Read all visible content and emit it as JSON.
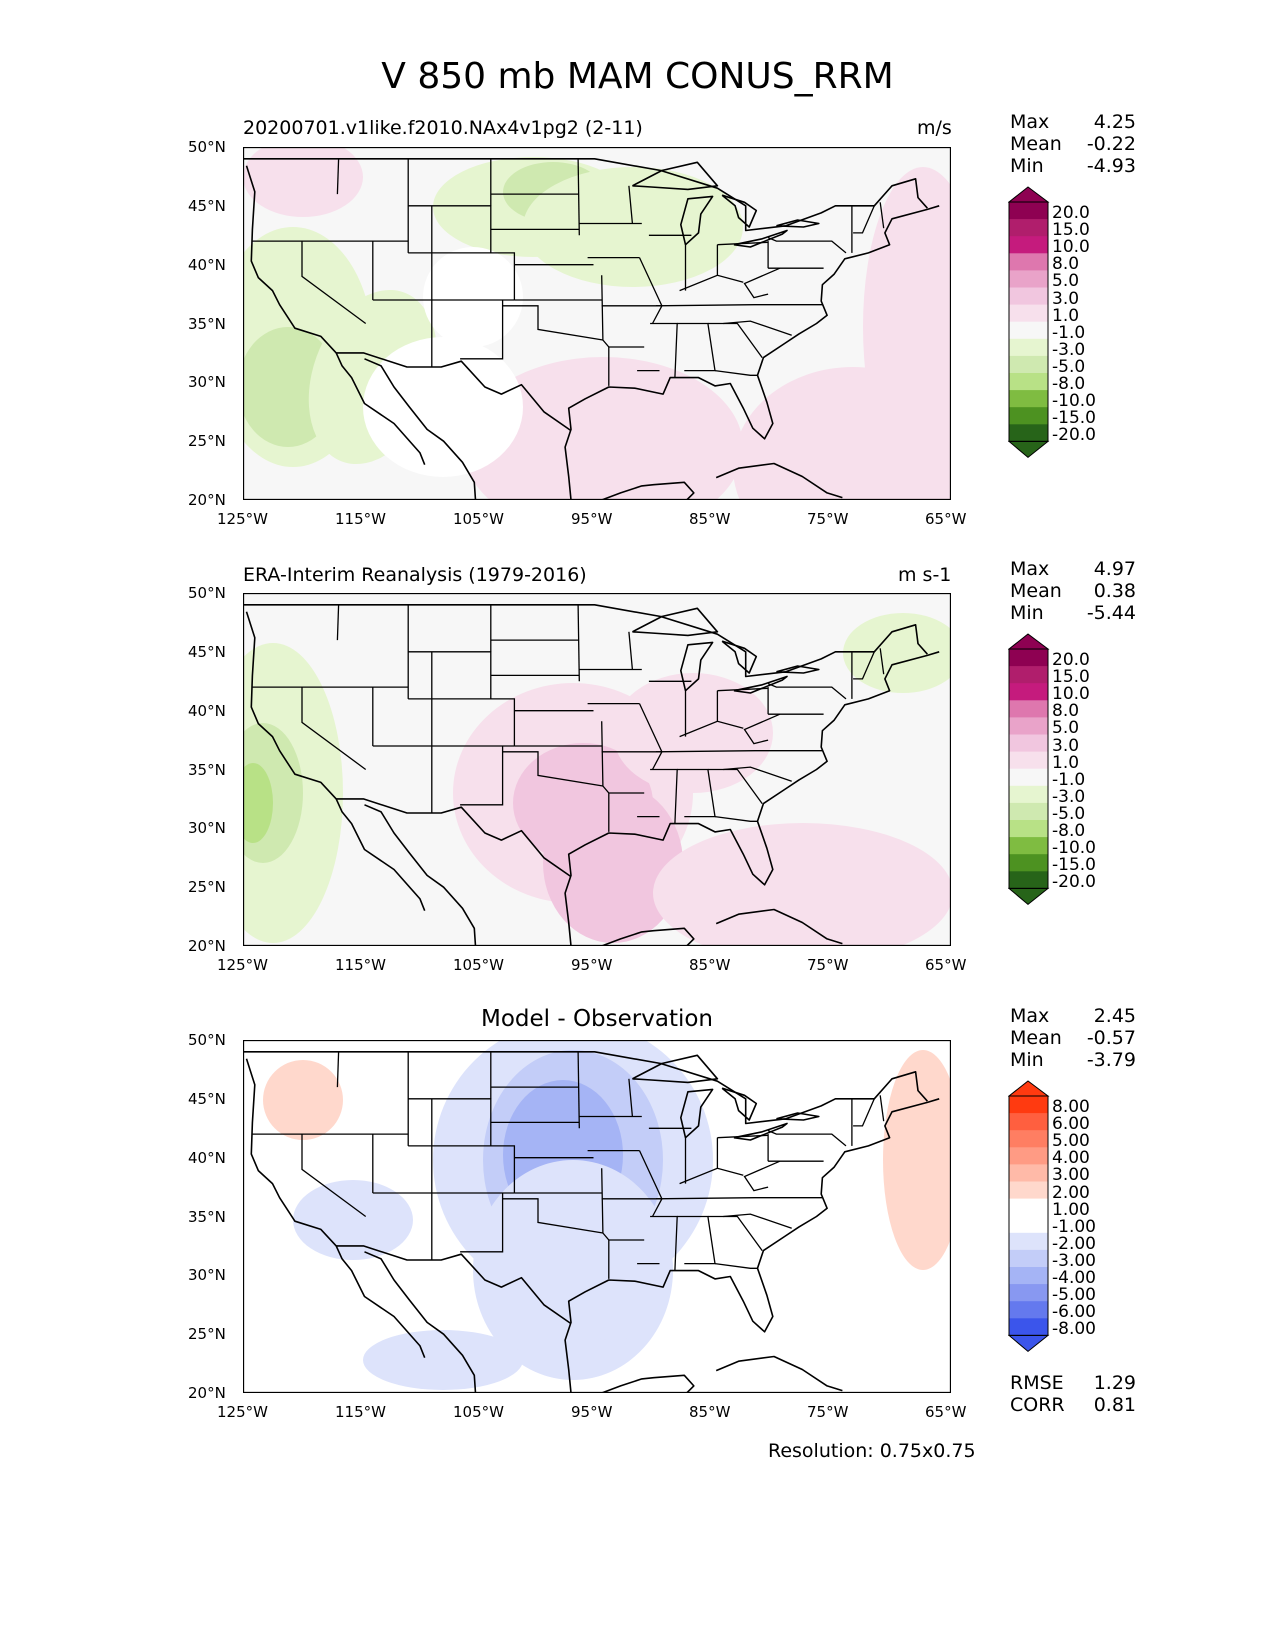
{
  "figure_title": "V 850 mb MAM CONUS_RRM",
  "panels": [
    {
      "left_title": "20200701.v1like.f2010.NAx4v1pg2 (2-11)",
      "right_title": "m/s",
      "stats": [
        {
          "k": "Max",
          "v": "4.25"
        },
        {
          "k": "Mean",
          "v": "-0.22"
        },
        {
          "k": "Min",
          "v": "-4.93"
        }
      ],
      "colorbar_labels": [
        "20.0",
        "15.0",
        "10.0",
        "8.0",
        "5.0",
        "3.0",
        "1.0",
        "-1.0",
        "-3.0",
        "-5.0",
        "-8.0",
        "-10.0",
        "-15.0",
        "-20.0"
      ]
    },
    {
      "left_title": "ERA-Interim Reanalysis (1979-2016)",
      "right_title": "m s-1",
      "stats": [
        {
          "k": "Max",
          "v": "4.97"
        },
        {
          "k": "Mean",
          "v": "0.38"
        },
        {
          "k": "Min",
          "v": "-5.44"
        }
      ],
      "colorbar_labels": [
        "20.0",
        "15.0",
        "10.0",
        "8.0",
        "5.0",
        "3.0",
        "1.0",
        "-1.0",
        "-3.0",
        "-5.0",
        "-8.0",
        "-10.0",
        "-15.0",
        "-20.0"
      ]
    },
    {
      "center_title": "Model - Observation",
      "stats": [
        {
          "k": "Max",
          "v": "2.45"
        },
        {
          "k": "Mean",
          "v": "-0.57"
        },
        {
          "k": "Min",
          "v": "-3.79"
        }
      ],
      "colorbar_labels": [
        "8.00",
        "6.00",
        "5.00",
        "4.00",
        "3.00",
        "2.00",
        "1.00",
        "-1.00",
        "-2.00",
        "-3.00",
        "-4.00",
        "-5.00",
        "-6.00",
        "-8.00"
      ],
      "extra_stats": [
        {
          "k": "RMSE",
          "v": "1.29"
        },
        {
          "k": "CORR",
          "v": "0.81"
        }
      ]
    }
  ],
  "lat_labels": [
    "50°N",
    "45°N",
    "40°N",
    "35°N",
    "30°N",
    "25°N",
    "20°N"
  ],
  "lon_labels": [
    "125°W",
    "115°W",
    "105°W",
    "95°W",
    "85°W",
    "75°W",
    "65°W"
  ],
  "resolution": "Resolution: 0.75x0.75",
  "colors": {
    "pigr": [
      "#8e0152",
      "#b01e6c",
      "#c51b7d",
      "#de77ae",
      "#e9a3c9",
      "#f1c6df",
      "#f7e0ec",
      "#f7f7f7",
      "#e6f5d0",
      "#cfe9b0",
      "#b8e186",
      "#7fbc41",
      "#4d9221",
      "#276419"
    ],
    "bwr": [
      "#ff3a10",
      "#ff5f3f",
      "#ff7e62",
      "#ff9b84",
      "#ffbaa8",
      "#ffd8cc",
      "#ffffff",
      "#ffffff",
      "#dde3fb",
      "#c3cdf8",
      "#a5b4f5",
      "#8898f1",
      "#6479ee",
      "#3b55eb"
    ]
  }
}
